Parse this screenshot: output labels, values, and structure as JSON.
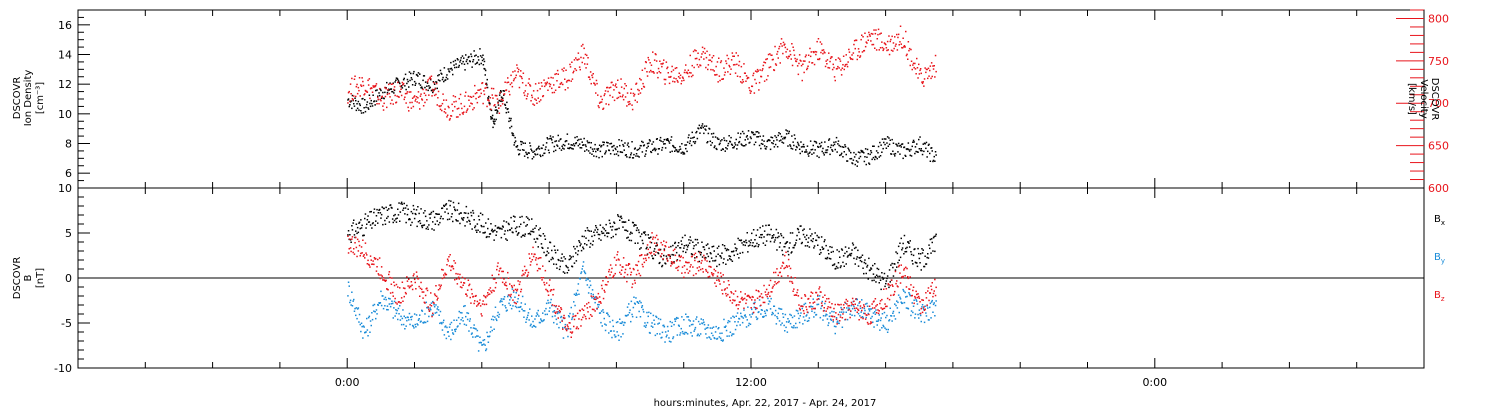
{
  "xlabel": "hours:minutes, Apr. 22, 2017 - Apr. 24, 2017",
  "x_ticks": [
    {
      "hour": 0,
      "label": "0:00"
    },
    {
      "hour": 12,
      "label": "12:00"
    },
    {
      "hour": 24,
      "label": "0:00"
    }
  ],
  "colors": {
    "black": "#000000",
    "red": "#e8141b",
    "blue": "#1a8cd8"
  },
  "chart_data": [
    {
      "type": "scatter",
      "panel": "top",
      "x_range_hours": [
        -8,
        32
      ],
      "left_axis": {
        "label_lines": [
          "DSCOVR",
          "Ion Density",
          "[cm⁻³]"
        ],
        "ylim": [
          5,
          17
        ],
        "ticks": [
          6,
          8,
          10,
          12,
          14,
          16
        ]
      },
      "right_axis": {
        "label_lines": [
          "DSCOVR",
          "Velocity",
          "[km/s]"
        ],
        "ylim": [
          600,
          810
        ],
        "ticks": [
          600,
          650,
          700,
          750,
          800
        ],
        "color": "#e8141b"
      },
      "series": [
        {
          "axis": "left",
          "color": "#000000",
          "x": [
            0,
            0.5,
            1,
            1.5,
            2,
            2.5,
            3,
            3.5,
            4,
            4.3,
            4.6,
            5,
            5.5,
            6,
            6.5,
            7,
            7.5,
            8,
            8.5,
            9,
            9.5,
            10,
            10.5,
            11,
            11.5,
            12,
            12.5,
            13,
            13.5,
            14,
            14.5,
            15,
            15.5,
            16,
            16.5,
            17,
            17.5
          ],
          "y": [
            11,
            10.5,
            11.5,
            12,
            12.5,
            12,
            13,
            13.5,
            14,
            9.5,
            11.5,
            7.8,
            7.5,
            8,
            8.2,
            8,
            7.6,
            7.8,
            7.6,
            7.8,
            8,
            7.8,
            9,
            8,
            8.2,
            8.5,
            8,
            8.5,
            7.8,
            7.6,
            8,
            7,
            7.2,
            8,
            7.5,
            8,
            7
          ]
        },
        {
          "axis": "right",
          "color": "#e8141b",
          "x": [
            0,
            0.5,
            1,
            1.5,
            2,
            2.5,
            3,
            3.5,
            4,
            4.5,
            5,
            5.5,
            6,
            6.5,
            7,
            7.5,
            8,
            8.5,
            9,
            9.5,
            10,
            10.5,
            11,
            11.5,
            12,
            12.5,
            13,
            13.5,
            14,
            14.5,
            15,
            15.5,
            16,
            16.5,
            17,
            17.5
          ],
          "y": [
            715,
            725,
            705,
            715,
            700,
            720,
            695,
            700,
            715,
            700,
            735,
            710,
            725,
            730,
            760,
            700,
            720,
            705,
            750,
            735,
            735,
            760,
            740,
            750,
            720,
            745,
            770,
            740,
            765,
            740,
            760,
            780,
            770,
            780,
            730,
            745
          ]
        }
      ]
    },
    {
      "type": "scatter",
      "panel": "bottom",
      "x_range_hours": [
        -8,
        32
      ],
      "left_axis": {
        "label_lines": [
          "DSCOVR",
          "B",
          "[nT]"
        ],
        "ylim": [
          -10,
          10
        ],
        "ticks": [
          -10,
          -5,
          0,
          5,
          10
        ]
      },
      "zero_line": true,
      "legend": {
        "placement": "right",
        "entries": [
          {
            "name": "B",
            "sub": "x",
            "color": "#000000"
          },
          {
            "name": "B",
            "sub": "y",
            "color": "#1a8cd8"
          },
          {
            "name": "B",
            "sub": "z",
            "color": "#e8141b"
          }
        ]
      },
      "series": [
        {
          "name": "Bx",
          "color": "#000000",
          "x": [
            0,
            0.5,
            1,
            1.5,
            2,
            2.5,
            3,
            3.5,
            4,
            4.5,
            5,
            5.5,
            6,
            6.5,
            7,
            7.5,
            8,
            8.5,
            9,
            9.5,
            10,
            10.5,
            11,
            11.5,
            12,
            12.5,
            13,
            13.5,
            14,
            14.5,
            15,
            15.5,
            16,
            16.5,
            17,
            17.5
          ],
          "y": [
            5,
            6,
            7,
            7.5,
            7,
            6.5,
            7.5,
            7,
            6,
            5,
            6,
            5.5,
            3,
            1,
            4.5,
            5,
            6,
            5,
            3.5,
            2,
            4,
            3,
            2.5,
            3,
            4.5,
            5,
            3.5,
            5,
            4,
            2,
            3,
            1,
            -0.5,
            4,
            2,
            4
          ]
        },
        {
          "name": "By",
          "color": "#1a8cd8",
          "x": [
            0,
            0.5,
            1,
            1.5,
            2,
            2.5,
            3,
            3.5,
            4,
            4.5,
            5,
            5.5,
            6,
            6.5,
            7,
            7.5,
            8,
            8.5,
            9,
            9.5,
            10,
            10.5,
            11,
            11.5,
            12,
            12.5,
            13,
            13.5,
            14,
            14.5,
            15,
            15.5,
            16,
            16.5,
            17,
            17.5
          ],
          "y": [
            -1,
            -6,
            -2,
            -4,
            -5,
            -3,
            -6,
            -4,
            -8,
            -3,
            -2,
            -5,
            -3,
            -6,
            1,
            -4,
            -6,
            -3,
            -5,
            -6,
            -5,
            -5.5,
            -6,
            -5,
            -4,
            -3,
            -5,
            -4,
            -3,
            -5,
            -3,
            -4,
            -5,
            -2,
            -4,
            -3
          ]
        },
        {
          "name": "Bz",
          "color": "#e8141b",
          "x": [
            0,
            0.5,
            1,
            1.5,
            2,
            2.5,
            3,
            3.5,
            4,
            4.5,
            5,
            5.5,
            6,
            6.5,
            7,
            7.5,
            8,
            8.5,
            9,
            9.5,
            10,
            10.5,
            11,
            11.5,
            12,
            12.5,
            13,
            13.5,
            14,
            14.5,
            15,
            15.5,
            16,
            16.5,
            17,
            17.5
          ],
          "y": [
            4,
            3,
            1,
            -2,
            0,
            -3,
            2,
            -1,
            -3,
            1,
            -2,
            3,
            -1,
            -6,
            -4,
            -2,
            2,
            0,
            4,
            3,
            1,
            2,
            0,
            -2,
            -3,
            -1,
            2,
            -3,
            -2,
            -4,
            -3,
            -4,
            -2,
            1,
            -3,
            -1
          ]
        }
      ]
    }
  ]
}
